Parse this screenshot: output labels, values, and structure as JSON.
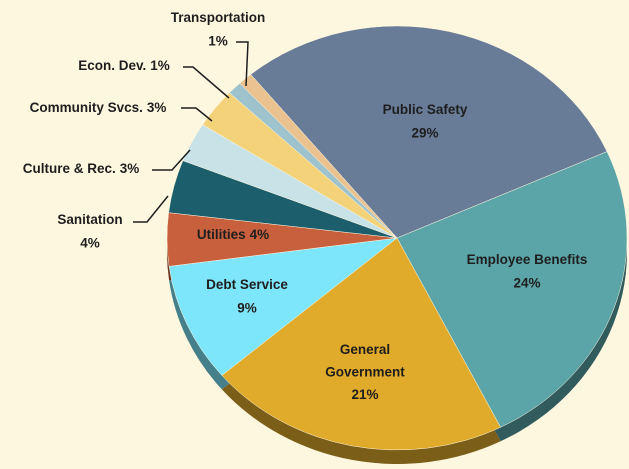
{
  "chart_data": {
    "type": "pie",
    "categories": [
      "Public Safety",
      "Employee Benefits",
      "General Government",
      "Debt Service",
      "Utilities",
      "Sanitation",
      "Culture & Rec.",
      "Community Svcs.",
      "Econ. Dev.",
      "Transportation"
    ],
    "values": [
      29,
      24,
      21,
      9,
      4,
      4,
      3,
      3,
      1,
      1
    ],
    "value_labels": [
      "29%",
      "24%",
      "21%",
      "9%",
      "4%",
      "4%",
      "3%",
      "3%",
      "1%",
      "1%"
    ],
    "colors": [
      "#687c98",
      "#5ba5a9",
      "#e0aa2a",
      "#7ee6fb",
      "#c8603e",
      "#1d5e6c",
      "#c8e3e8",
      "#f3d27a",
      "#9ec3cc",
      "#e9c28f"
    ]
  }
}
